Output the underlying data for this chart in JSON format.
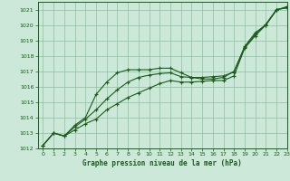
{
  "title": "Graphe pression niveau de la mer (hPa)",
  "bg_color": "#cbe8d8",
  "grid_color": "#8fbfa0",
  "line_color": "#1a5c1a",
  "marker_color": "#1a5c1a",
  "xlim": [
    -0.5,
    23
  ],
  "ylim": [
    1012,
    1021.5
  ],
  "xticks": [
    0,
    1,
    2,
    3,
    4,
    5,
    6,
    7,
    8,
    9,
    10,
    11,
    12,
    13,
    14,
    15,
    16,
    17,
    18,
    19,
    20,
    21,
    22,
    23
  ],
  "yticks": [
    1012,
    1013,
    1014,
    1015,
    1016,
    1017,
    1018,
    1019,
    1020,
    1021
  ],
  "series1_x": [
    0,
    1,
    2,
    3,
    4,
    5,
    6,
    7,
    8,
    9,
    10,
    11,
    12,
    13,
    14,
    15,
    16,
    17,
    18,
    19,
    20,
    21,
    22,
    23
  ],
  "series1_y": [
    1012.2,
    1013.0,
    1012.8,
    1013.5,
    1014.0,
    1015.5,
    1016.3,
    1016.9,
    1017.1,
    1017.1,
    1017.1,
    1017.2,
    1017.2,
    1016.9,
    1016.6,
    1016.5,
    1016.5,
    1016.6,
    1017.0,
    1018.6,
    1019.5,
    1020.0,
    1021.0,
    1021.1
  ],
  "series2_x": [
    0,
    1,
    2,
    3,
    4,
    5,
    6,
    7,
    8,
    9,
    10,
    11,
    12,
    13,
    14,
    15,
    16,
    17,
    18,
    19,
    20,
    21,
    22,
    23
  ],
  "series2_y": [
    1012.2,
    1013.0,
    1012.8,
    1013.4,
    1013.9,
    1014.5,
    1015.2,
    1015.8,
    1016.3,
    1016.6,
    1016.75,
    1016.85,
    1016.9,
    1016.65,
    1016.6,
    1016.6,
    1016.65,
    1016.7,
    1016.95,
    1018.55,
    1019.4,
    1020.05,
    1021.0,
    1021.15
  ],
  "series3_x": [
    0,
    1,
    2,
    3,
    4,
    5,
    6,
    7,
    8,
    9,
    10,
    11,
    12,
    13,
    14,
    15,
    16,
    17,
    18,
    19,
    20,
    21,
    22,
    23
  ],
  "series3_y": [
    1012.2,
    1013.0,
    1012.8,
    1013.2,
    1013.6,
    1013.9,
    1014.5,
    1014.9,
    1015.3,
    1015.6,
    1015.9,
    1016.2,
    1016.4,
    1016.3,
    1016.3,
    1016.35,
    1016.4,
    1016.4,
    1016.7,
    1018.5,
    1019.3,
    1020.0,
    1020.95,
    1021.2
  ]
}
